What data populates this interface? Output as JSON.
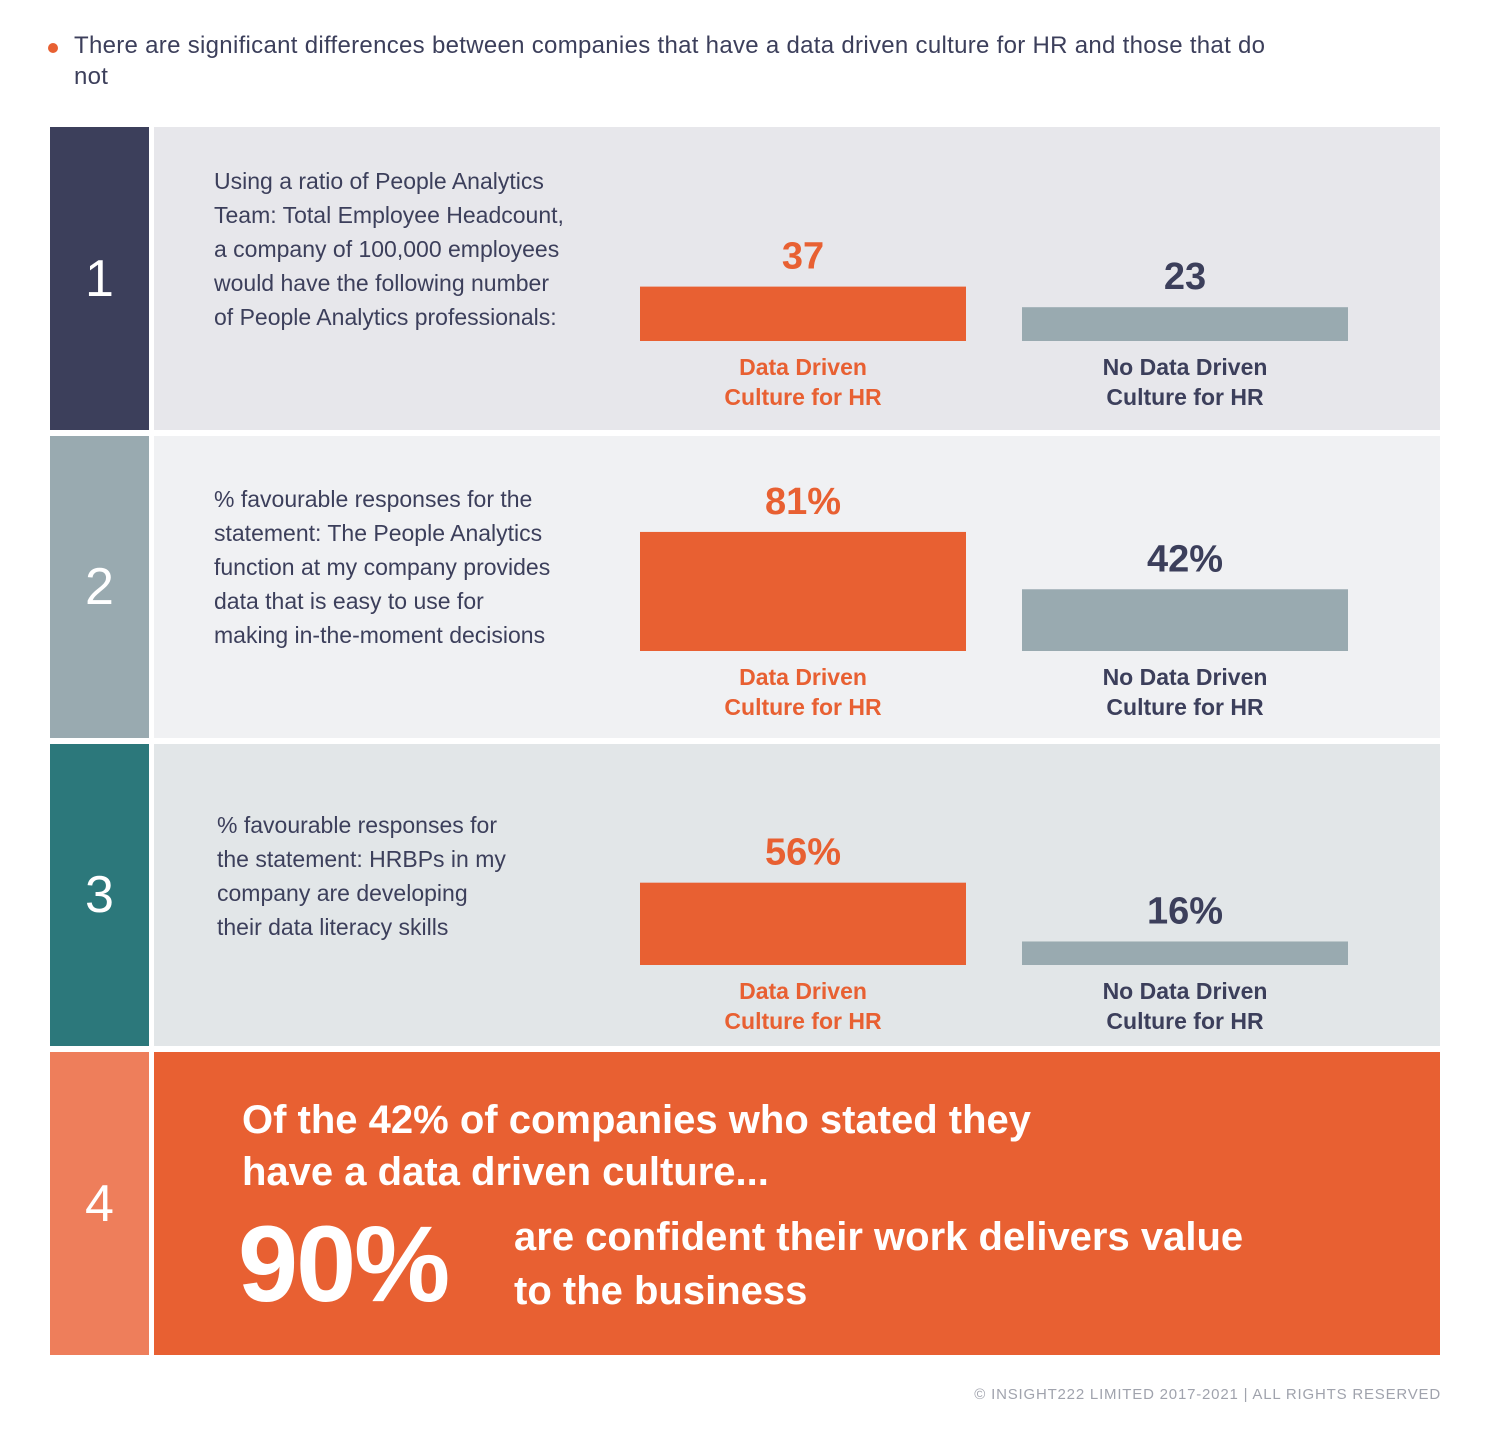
{
  "intro": {
    "bullet_text": "There are significant differences between companies that have a data driven culture for HR and those that do not"
  },
  "rows": [
    {
      "number": "1",
      "description": "Using a ratio of People Analytics Team: Total Employee Headcount, a company of 100,000 employees would have the following number of People Analytics professionals:",
      "bars": [
        {
          "value_label": "37",
          "category_label": "Data Driven Culture for HR"
        },
        {
          "value_label": "23",
          "category_label": "No Data Driven Culture for HR"
        }
      ]
    },
    {
      "number": "2",
      "description": "% favourable responses for the statement: The People Analytics function at my company provides data that is easy to use for making in-the-moment decisions",
      "bars": [
        {
          "value_label": "81%",
          "category_label": "Data Driven Culture for HR"
        },
        {
          "value_label": "42%",
          "category_label": "No Data Driven Culture for HR"
        }
      ]
    },
    {
      "number": "3",
      "description": "% favourable responses for the statement: HRBPs in my company are developing their data literacy skills",
      "bars": [
        {
          "value_label": "56%",
          "category_label": "Data Driven Culture for HR"
        },
        {
          "value_label": "16%",
          "category_label": "No Data Driven Culture for HR"
        }
      ]
    }
  ],
  "row4": {
    "number": "4",
    "headline": "Of the 42% of companies who stated they have a data driven culture...",
    "big_stat": "90%",
    "stat_text": "are confident their work delivers value to the business"
  },
  "footer": "© INSIGHT222 LIMITED 2017-2021 | ALL RIGHTS RESERVED",
  "colors": {
    "orange": "#e86032",
    "grey_bar": "#99aab0",
    "navy": "#3c3f5b",
    "num1_bg": "#3c3f5b",
    "num2_bg": "#99aab0",
    "num3_bg": "#2c787b",
    "num4_bg": "#ee7e5b",
    "panel1_bg": "#e7e7eb",
    "panel2_bg": "#f0f1f3",
    "panel3_bg": "#e2e6e8",
    "panel4_bg": "#e86032"
  },
  "chart_data": [
    {
      "type": "bar",
      "categories": [
        "Data Driven Culture for HR",
        "No Data Driven Culture for HR"
      ],
      "values": [
        37,
        23
      ]
    },
    {
      "type": "bar",
      "categories": [
        "Data Driven Culture for HR",
        "No Data Driven Culture for HR"
      ],
      "values": [
        81,
        42
      ]
    },
    {
      "type": "bar",
      "categories": [
        "Data Driven Culture for HR",
        "No Data Driven Culture for HR"
      ],
      "values": [
        56,
        16
      ]
    }
  ]
}
